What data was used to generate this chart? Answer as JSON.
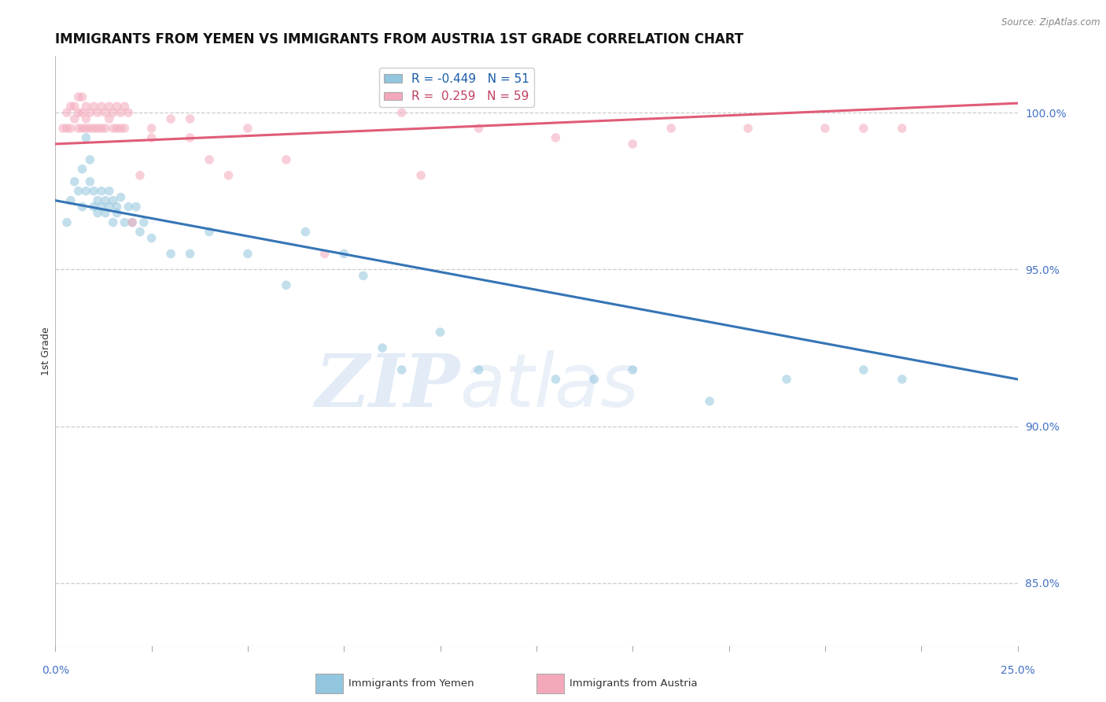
{
  "title": "IMMIGRANTS FROM YEMEN VS IMMIGRANTS FROM AUSTRIA 1ST GRADE CORRELATION CHART",
  "source": "Source: ZipAtlas.com",
  "ylabel": "1st Grade",
  "xlim": [
    0.0,
    0.25
  ],
  "ylim": [
    83.0,
    101.8
  ],
  "y_ticks": [
    85.0,
    90.0,
    95.0,
    100.0
  ],
  "x_ticks_display": [
    "0.0%",
    "25.0%"
  ],
  "legend_blue_R": "-0.449",
  "legend_blue_N": "51",
  "legend_pink_R": "0.259",
  "legend_pink_N": "59",
  "blue_color": "#92c5de",
  "pink_color": "#f4a9bb",
  "blue_line_color": "#3575b5",
  "pink_line_color": "#e05c78",
  "watermark_text": "ZIP",
  "watermark_text2": "atlas",
  "grid_color": "#cccccc",
  "background_color": "#ffffff",
  "title_fontsize": 12,
  "axis_label_fontsize": 9,
  "tick_fontsize": 10,
  "legend_fontsize": 11,
  "marker_size": 70,
  "marker_alpha": 0.55,
  "blue_scatter_x": [
    0.003,
    0.004,
    0.005,
    0.006,
    0.007,
    0.007,
    0.008,
    0.008,
    0.009,
    0.009,
    0.01,
    0.01,
    0.011,
    0.011,
    0.012,
    0.012,
    0.013,
    0.013,
    0.014,
    0.014,
    0.015,
    0.015,
    0.016,
    0.016,
    0.017,
    0.018,
    0.019,
    0.02,
    0.021,
    0.022,
    0.023,
    0.025,
    0.03,
    0.035,
    0.04,
    0.05,
    0.06,
    0.065,
    0.075,
    0.08,
    0.085,
    0.09,
    0.1,
    0.11,
    0.13,
    0.14,
    0.15,
    0.17,
    0.19,
    0.21,
    0.22
  ],
  "blue_scatter_y": [
    96.5,
    97.2,
    97.8,
    97.5,
    97.0,
    98.2,
    97.5,
    99.2,
    97.8,
    98.5,
    97.0,
    97.5,
    96.8,
    97.2,
    97.5,
    97.0,
    97.2,
    96.8,
    97.5,
    97.0,
    97.2,
    96.5,
    97.0,
    96.8,
    97.3,
    96.5,
    97.0,
    96.5,
    97.0,
    96.2,
    96.5,
    96.0,
    95.5,
    95.5,
    96.2,
    95.5,
    94.5,
    96.2,
    95.5,
    94.8,
    92.5,
    91.8,
    93.0,
    91.8,
    91.5,
    91.5,
    91.8,
    90.8,
    91.5,
    91.8,
    91.5
  ],
  "pink_scatter_x": [
    0.002,
    0.003,
    0.003,
    0.004,
    0.004,
    0.005,
    0.005,
    0.006,
    0.006,
    0.006,
    0.007,
    0.007,
    0.007,
    0.008,
    0.008,
    0.008,
    0.009,
    0.009,
    0.01,
    0.01,
    0.011,
    0.011,
    0.012,
    0.012,
    0.013,
    0.013,
    0.014,
    0.014,
    0.015,
    0.015,
    0.016,
    0.016,
    0.017,
    0.017,
    0.018,
    0.018,
    0.019,
    0.02,
    0.022,
    0.025,
    0.03,
    0.035,
    0.04,
    0.045,
    0.05,
    0.06,
    0.07,
    0.09,
    0.11,
    0.13,
    0.15,
    0.16,
    0.18,
    0.2,
    0.21,
    0.22,
    0.035,
    0.025,
    0.095
  ],
  "pink_scatter_y": [
    99.5,
    100.0,
    99.5,
    100.2,
    99.5,
    100.2,
    99.8,
    100.0,
    99.5,
    100.5,
    100.0,
    99.5,
    100.5,
    99.8,
    100.2,
    99.5,
    100.0,
    99.5,
    100.2,
    99.5,
    100.0,
    99.5,
    100.2,
    99.5,
    100.0,
    99.5,
    100.2,
    99.8,
    100.0,
    99.5,
    100.2,
    99.5,
    100.0,
    99.5,
    100.2,
    99.5,
    100.0,
    96.5,
    98.0,
    99.5,
    99.8,
    99.2,
    98.5,
    98.0,
    99.5,
    98.5,
    95.5,
    100.0,
    99.5,
    99.2,
    99.0,
    99.5,
    99.5,
    99.5,
    99.5,
    99.5,
    99.8,
    99.2,
    98.0
  ],
  "blue_trend_x": [
    0.0,
    0.25
  ],
  "blue_trend_y": [
    97.2,
    91.5
  ],
  "pink_trend_x": [
    0.0,
    0.25
  ],
  "pink_trend_y": [
    99.0,
    100.3
  ]
}
